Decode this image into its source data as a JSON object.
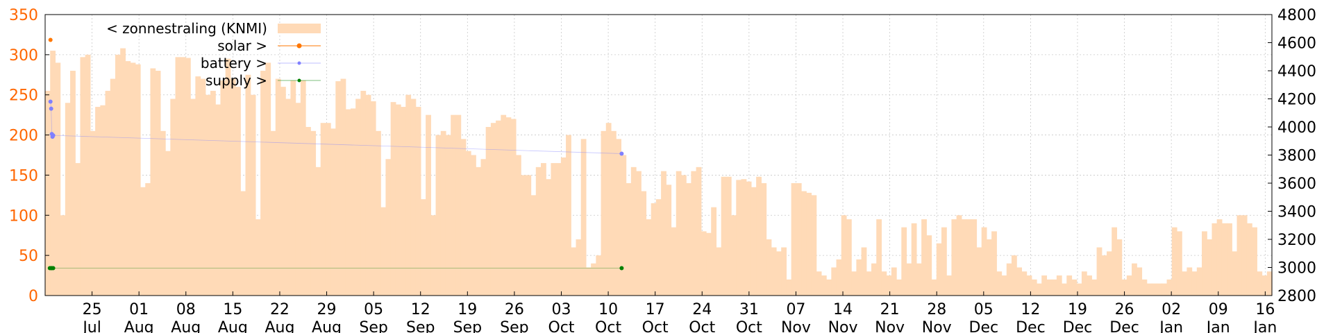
{
  "chart_data": {
    "type": "area",
    "title": "",
    "xlabel": "",
    "ylabel": "",
    "y2label": "",
    "grid": true,
    "legend_position": "top-left",
    "colors": {
      "zonnestraling": "#ffdab7",
      "solar": "#ff7700",
      "battery": "#8080ff",
      "supply": "#008000",
      "left_axis_text": "#ff6600",
      "grid": "#c8c8c8"
    },
    "ylim_left": [
      0,
      350
    ],
    "yticks_left": [
      "0",
      "50",
      "100",
      "150",
      "200",
      "250",
      "300",
      "350"
    ],
    "ylim_right": [
      2800,
      4800
    ],
    "yticks_right": [
      "2800",
      "3000",
      "3200",
      "3400",
      "3600",
      "3800",
      "4000",
      "4200",
      "4400",
      "4600",
      "4800"
    ],
    "x_range_days": [
      0,
      183
    ],
    "x_tick_days": [
      7,
      14,
      21,
      28,
      35,
      42,
      49,
      56,
      63,
      70,
      77,
      84,
      91,
      98,
      105,
      112,
      119,
      126,
      133,
      140,
      147,
      154,
      161,
      168,
      175,
      182
    ],
    "x_ticks": [
      [
        "25",
        "Jul"
      ],
      [
        "01",
        "Aug"
      ],
      [
        "08",
        "Aug"
      ],
      [
        "15",
        "Aug"
      ],
      [
        "22",
        "Aug"
      ],
      [
        "29",
        "Aug"
      ],
      [
        "05",
        "Sep"
      ],
      [
        "12",
        "Sep"
      ],
      [
        "19",
        "Sep"
      ],
      [
        "26",
        "Sep"
      ],
      [
        "03",
        "Oct"
      ],
      [
        "10",
        "Oct"
      ],
      [
        "17",
        "Oct"
      ],
      [
        "24",
        "Oct"
      ],
      [
        "31",
        "Oct"
      ],
      [
        "07",
        "Nov"
      ],
      [
        "14",
        "Nov"
      ],
      [
        "21",
        "Nov"
      ],
      [
        "28",
        "Nov"
      ],
      [
        "05",
        "Dec"
      ],
      [
        "12",
        "Dec"
      ],
      [
        "19",
        "Dec"
      ],
      [
        "26",
        "Dec"
      ],
      [
        "02",
        "Jan"
      ],
      [
        "09",
        "Jan"
      ],
      [
        "16",
        "Jan"
      ]
    ],
    "legend": [
      "< zonnestraling (KNMI)",
      "solar >",
      "battery >",
      "supply >"
    ],
    "series": [
      {
        "name": "< zonnestraling (KNMI)",
        "axis": "left",
        "kind": "area",
        "values": [
          255,
          305,
          290,
          100,
          240,
          280,
          165,
          297,
          300,
          205,
          235,
          237,
          255,
          270,
          300,
          308,
          292,
          290,
          288,
          135,
          140,
          283,
          280,
          205,
          180,
          245,
          297,
          297,
          296,
          245,
          273,
          270,
          250,
          255,
          238,
          268,
          295,
          270,
          260,
          130,
          275,
          250,
          95,
          280,
          290,
          205,
          270,
          260,
          245,
          268,
          240,
          268,
          210,
          205,
          160,
          215,
          215,
          208,
          267,
          270,
          232,
          233,
          245,
          255,
          250,
          242,
          205,
          110,
          170,
          241,
          238,
          235,
          250,
          245,
          235,
          120,
          225,
          100,
          200,
          205,
          200,
          225,
          225,
          195,
          180,
          175,
          160,
          170,
          210,
          215,
          218,
          225,
          222,
          220,
          175,
          150,
          150,
          125,
          160,
          165,
          145,
          165,
          165,
          172,
          200,
          60,
          70,
          195,
          35,
          40,
          50,
          205,
          215,
          205,
          195,
          175,
          140,
          160,
          155,
          130,
          95,
          115,
          120,
          155,
          138,
          85,
          155,
          150,
          140,
          155,
          160,
          80,
          78,
          110,
          60,
          148,
          148,
          100,
          144,
          145,
          142,
          135,
          148,
          140,
          70,
          60,
          55,
          60,
          20,
          140,
          140,
          130,
          128,
          125,
          30,
          25,
          20,
          35,
          45,
          100,
          95,
          30,
          45,
          60,
          30,
          40,
          95,
          30,
          25,
          35,
          20,
          85,
          40,
          90,
          40,
          95,
          75,
          20,
          65,
          85,
          25,
          95,
          100,
          95,
          95,
          95,
          60,
          85,
          70,
          80,
          30,
          25,
          40,
          50,
          35,
          30,
          25,
          20,
          15,
          25,
          20,
          20,
          25,
          15,
          25,
          20,
          15,
          30,
          25,
          20,
          60,
          50,
          55,
          85,
          70,
          20,
          25,
          40,
          35,
          20,
          15,
          15,
          15,
          15,
          20,
          85,
          80,
          30,
          35,
          30,
          35,
          80,
          70,
          90,
          95,
          90,
          90,
          55,
          100,
          100,
          90,
          85,
          30,
          25,
          30
        ]
      },
      {
        "name": "solar >",
        "axis": "right",
        "kind": "points",
        "points": [
          [
            0.8,
            4620
          ]
        ]
      },
      {
        "name": "battery >",
        "axis": "right",
        "kind": "line_points",
        "points": [
          [
            0.8,
            4180
          ],
          [
            0.9,
            4130
          ],
          [
            1.0,
            3950
          ],
          [
            1.1,
            3930
          ],
          [
            1.2,
            3940
          ],
          [
            86,
            3810
          ]
        ]
      },
      {
        "name": "supply >",
        "axis": "right",
        "kind": "line_points",
        "points": [
          [
            0.7,
            2995
          ],
          [
            0.9,
            2995
          ],
          [
            1.0,
            2995
          ],
          [
            1.2,
            2995
          ],
          [
            86,
            2995
          ]
        ]
      }
    ]
  }
}
